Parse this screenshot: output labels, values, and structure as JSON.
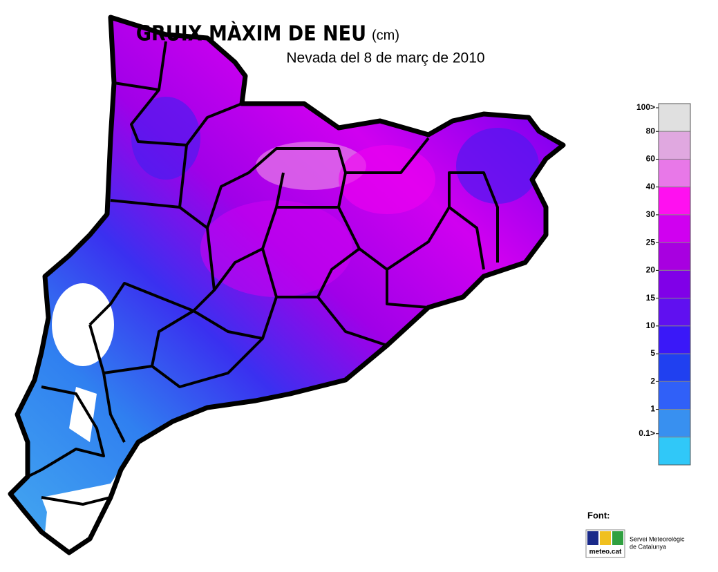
{
  "title": "GRUIX MÀXIM DE NEU",
  "unit": "(cm)",
  "subtitle": "Nevada del 8 de març de 2010",
  "legend": {
    "labels": [
      "100>",
      "80",
      "60",
      "40",
      "30",
      "25",
      "20",
      "15",
      "10",
      "5",
      "2",
      "1",
      "0.1>"
    ],
    "colors": [
      "#e0e0e0",
      "#e0a8e0",
      "#e878e8",
      "#ff10f0",
      "#d000f0",
      "#a800e0",
      "#8000e8",
      "#6010f0",
      "#3a18f8",
      "#2040f0",
      "#3060f8",
      "#3890f0",
      "#30c8f8"
    ]
  },
  "source": {
    "label": "Font:",
    "logo_text": "meteo.cat",
    "name_lines": [
      "Servei Meteorològic",
      "de Catalunya"
    ]
  }
}
